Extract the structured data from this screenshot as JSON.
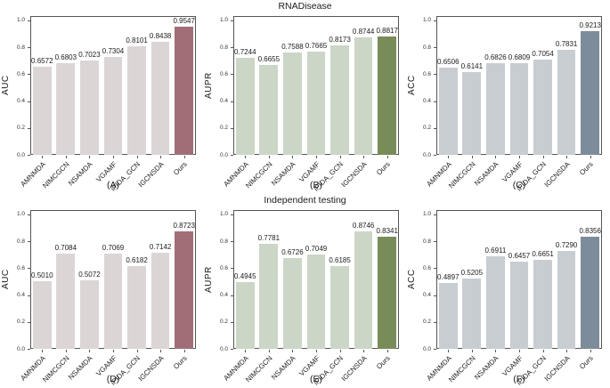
{
  "figure": {
    "rows": [
      {
        "title": "RNADisease"
      },
      {
        "title": "Independent testing"
      }
    ],
    "categories": [
      "AMNMDA",
      "NIMCGCN",
      "NSAMDA",
      "VGAMF",
      "iPIDA_GCN",
      "IGCNSDA",
      "Ours"
    ],
    "ytick_labels": [
      "0.0",
      "0.2",
      "0.4",
      "0.6",
      "0.8",
      "1.0"
    ],
    "spine_color": "#555555",
    "text_color": "#1a1a1a"
  },
  "chart_data": [
    {
      "type": "bar",
      "panel_label": "(A)",
      "group_title": "RNADisease",
      "ylabel": "AUC",
      "categories": [
        "AMNMDA",
        "NIMCGCN",
        "NSAMDA",
        "VGAMF",
        "iPIDA_GCN",
        "IGCNSDA",
        "Ours"
      ],
      "values": [
        0.6572,
        0.6803,
        0.7023,
        0.7304,
        0.8101,
        0.8438,
        0.9547
      ],
      "value_labels": [
        "0.6572",
        "0.6803",
        "0.7023",
        "0.7304",
        "0.8101",
        "0.8438",
        "0.9547"
      ],
      "ylim": [
        0,
        1.0
      ],
      "yticks": [
        0.0,
        0.2,
        0.4,
        0.6,
        0.8,
        1.0
      ],
      "grid": false,
      "bar_color": "#dcd5d5",
      "highlight_color": "#a16e77",
      "highlight_index": 6
    },
    {
      "type": "bar",
      "panel_label": "(B)",
      "group_title": "RNADisease",
      "ylabel": "AUPR",
      "categories": [
        "AMNMDA",
        "NIMCGCN",
        "NSAMDA",
        "VGAMF",
        "iPIDA_GCN",
        "IGCNSDA",
        "Ours"
      ],
      "values": [
        0.7244,
        0.6655,
        0.7588,
        0.7665,
        0.8173,
        0.8744,
        0.8817
      ],
      "value_labels": [
        "0.7244",
        "0.6655",
        "0.7588",
        "0.7665",
        "0.8173",
        "0.8744",
        "0.8817"
      ],
      "ylim": [
        0,
        1.0
      ],
      "yticks": [
        0.0,
        0.2,
        0.4,
        0.6,
        0.8,
        1.0
      ],
      "grid": false,
      "bar_color": "#ccd6c6",
      "highlight_color": "#788c5a",
      "highlight_index": 6
    },
    {
      "type": "bar",
      "panel_label": "(C)",
      "group_title": "RNADisease",
      "ylabel": "ACC",
      "categories": [
        "AMNMDA",
        "NIMCGCN",
        "NSAMDA",
        "VGAMF",
        "iPIDA_GCN",
        "IGCNSDA",
        "Ours"
      ],
      "values": [
        0.6506,
        0.6141,
        0.6826,
        0.6809,
        0.7054,
        0.7831,
        0.9213
      ],
      "value_labels": [
        "0.6506",
        "0.6141",
        "0.6826",
        "0.6809",
        "0.7054",
        "0.7831",
        "0.9213"
      ],
      "ylim": [
        0,
        1.0
      ],
      "yticks": [
        0.0,
        0.2,
        0.4,
        0.6,
        0.8,
        1.0
      ],
      "grid": false,
      "bar_color": "#c8cdd2",
      "highlight_color": "#7d8c9b",
      "highlight_index": 6
    },
    {
      "type": "bar",
      "panel_label": "(D)",
      "group_title": "Independent testing",
      "ylabel": "AUC",
      "categories": [
        "AMNMDA",
        "NIMCGCN",
        "NSAMDA",
        "VGAMF",
        "iPIDA_GCN",
        "IGCNSDA",
        "Ours"
      ],
      "values": [
        0.501,
        0.7084,
        0.5072,
        0.7069,
        0.6182,
        0.7142,
        0.8723
      ],
      "value_labels": [
        "0.5010",
        "0.7084",
        "0.5072",
        "0.7069",
        "0.6182",
        "0.7142",
        "0.8723"
      ],
      "ylim": [
        0,
        1.0
      ],
      "yticks": [
        0.0,
        0.2,
        0.4,
        0.6,
        0.8,
        1.0
      ],
      "grid": false,
      "bar_color": "#dcd5d5",
      "highlight_color": "#a16e77",
      "highlight_index": 6
    },
    {
      "type": "bar",
      "panel_label": "(E)",
      "group_title": "Independent testing",
      "ylabel": "AUPR",
      "categories": [
        "AMNMDA",
        "NIMCGCN",
        "NSAMDA",
        "VGAMF",
        "iPIDA_GCN",
        "IGCNSDA",
        "Ours"
      ],
      "values": [
        0.4945,
        0.7781,
        0.6726,
        0.7049,
        0.6185,
        0.8746,
        0.8341
      ],
      "value_labels": [
        "0.4945",
        "0.7781",
        "0.6726",
        "0.7049",
        "0.6185",
        "0.8746",
        "0.8341"
      ],
      "ylim": [
        0,
        1.0
      ],
      "yticks": [
        0.0,
        0.2,
        0.4,
        0.6,
        0.8,
        1.0
      ],
      "grid": false,
      "bar_color": "#ccd6c6",
      "highlight_color": "#788c5a",
      "highlight_index": 6
    },
    {
      "type": "bar",
      "panel_label": "(F)",
      "group_title": "Independent testing",
      "ylabel": "ACC",
      "categories": [
        "AMNMDA",
        "NIMCGCN",
        "NSAMDA",
        "VGAMF",
        "iPIDA_GCN",
        "IGCNSDA",
        "Ours"
      ],
      "values": [
        0.4897,
        0.5205,
        0.6911,
        0.6457,
        0.6651,
        0.729,
        0.8356
      ],
      "value_labels": [
        "0.4897",
        "0.5205",
        "0.6911",
        "0.6457",
        "0.6651",
        "0.7290",
        "0.8356"
      ],
      "ylim": [
        0,
        1.0
      ],
      "yticks": [
        0.0,
        0.2,
        0.4,
        0.6,
        0.8,
        1.0
      ],
      "grid": false,
      "bar_color": "#c8cdd2",
      "highlight_color": "#7d8c9b",
      "highlight_index": 6
    }
  ]
}
